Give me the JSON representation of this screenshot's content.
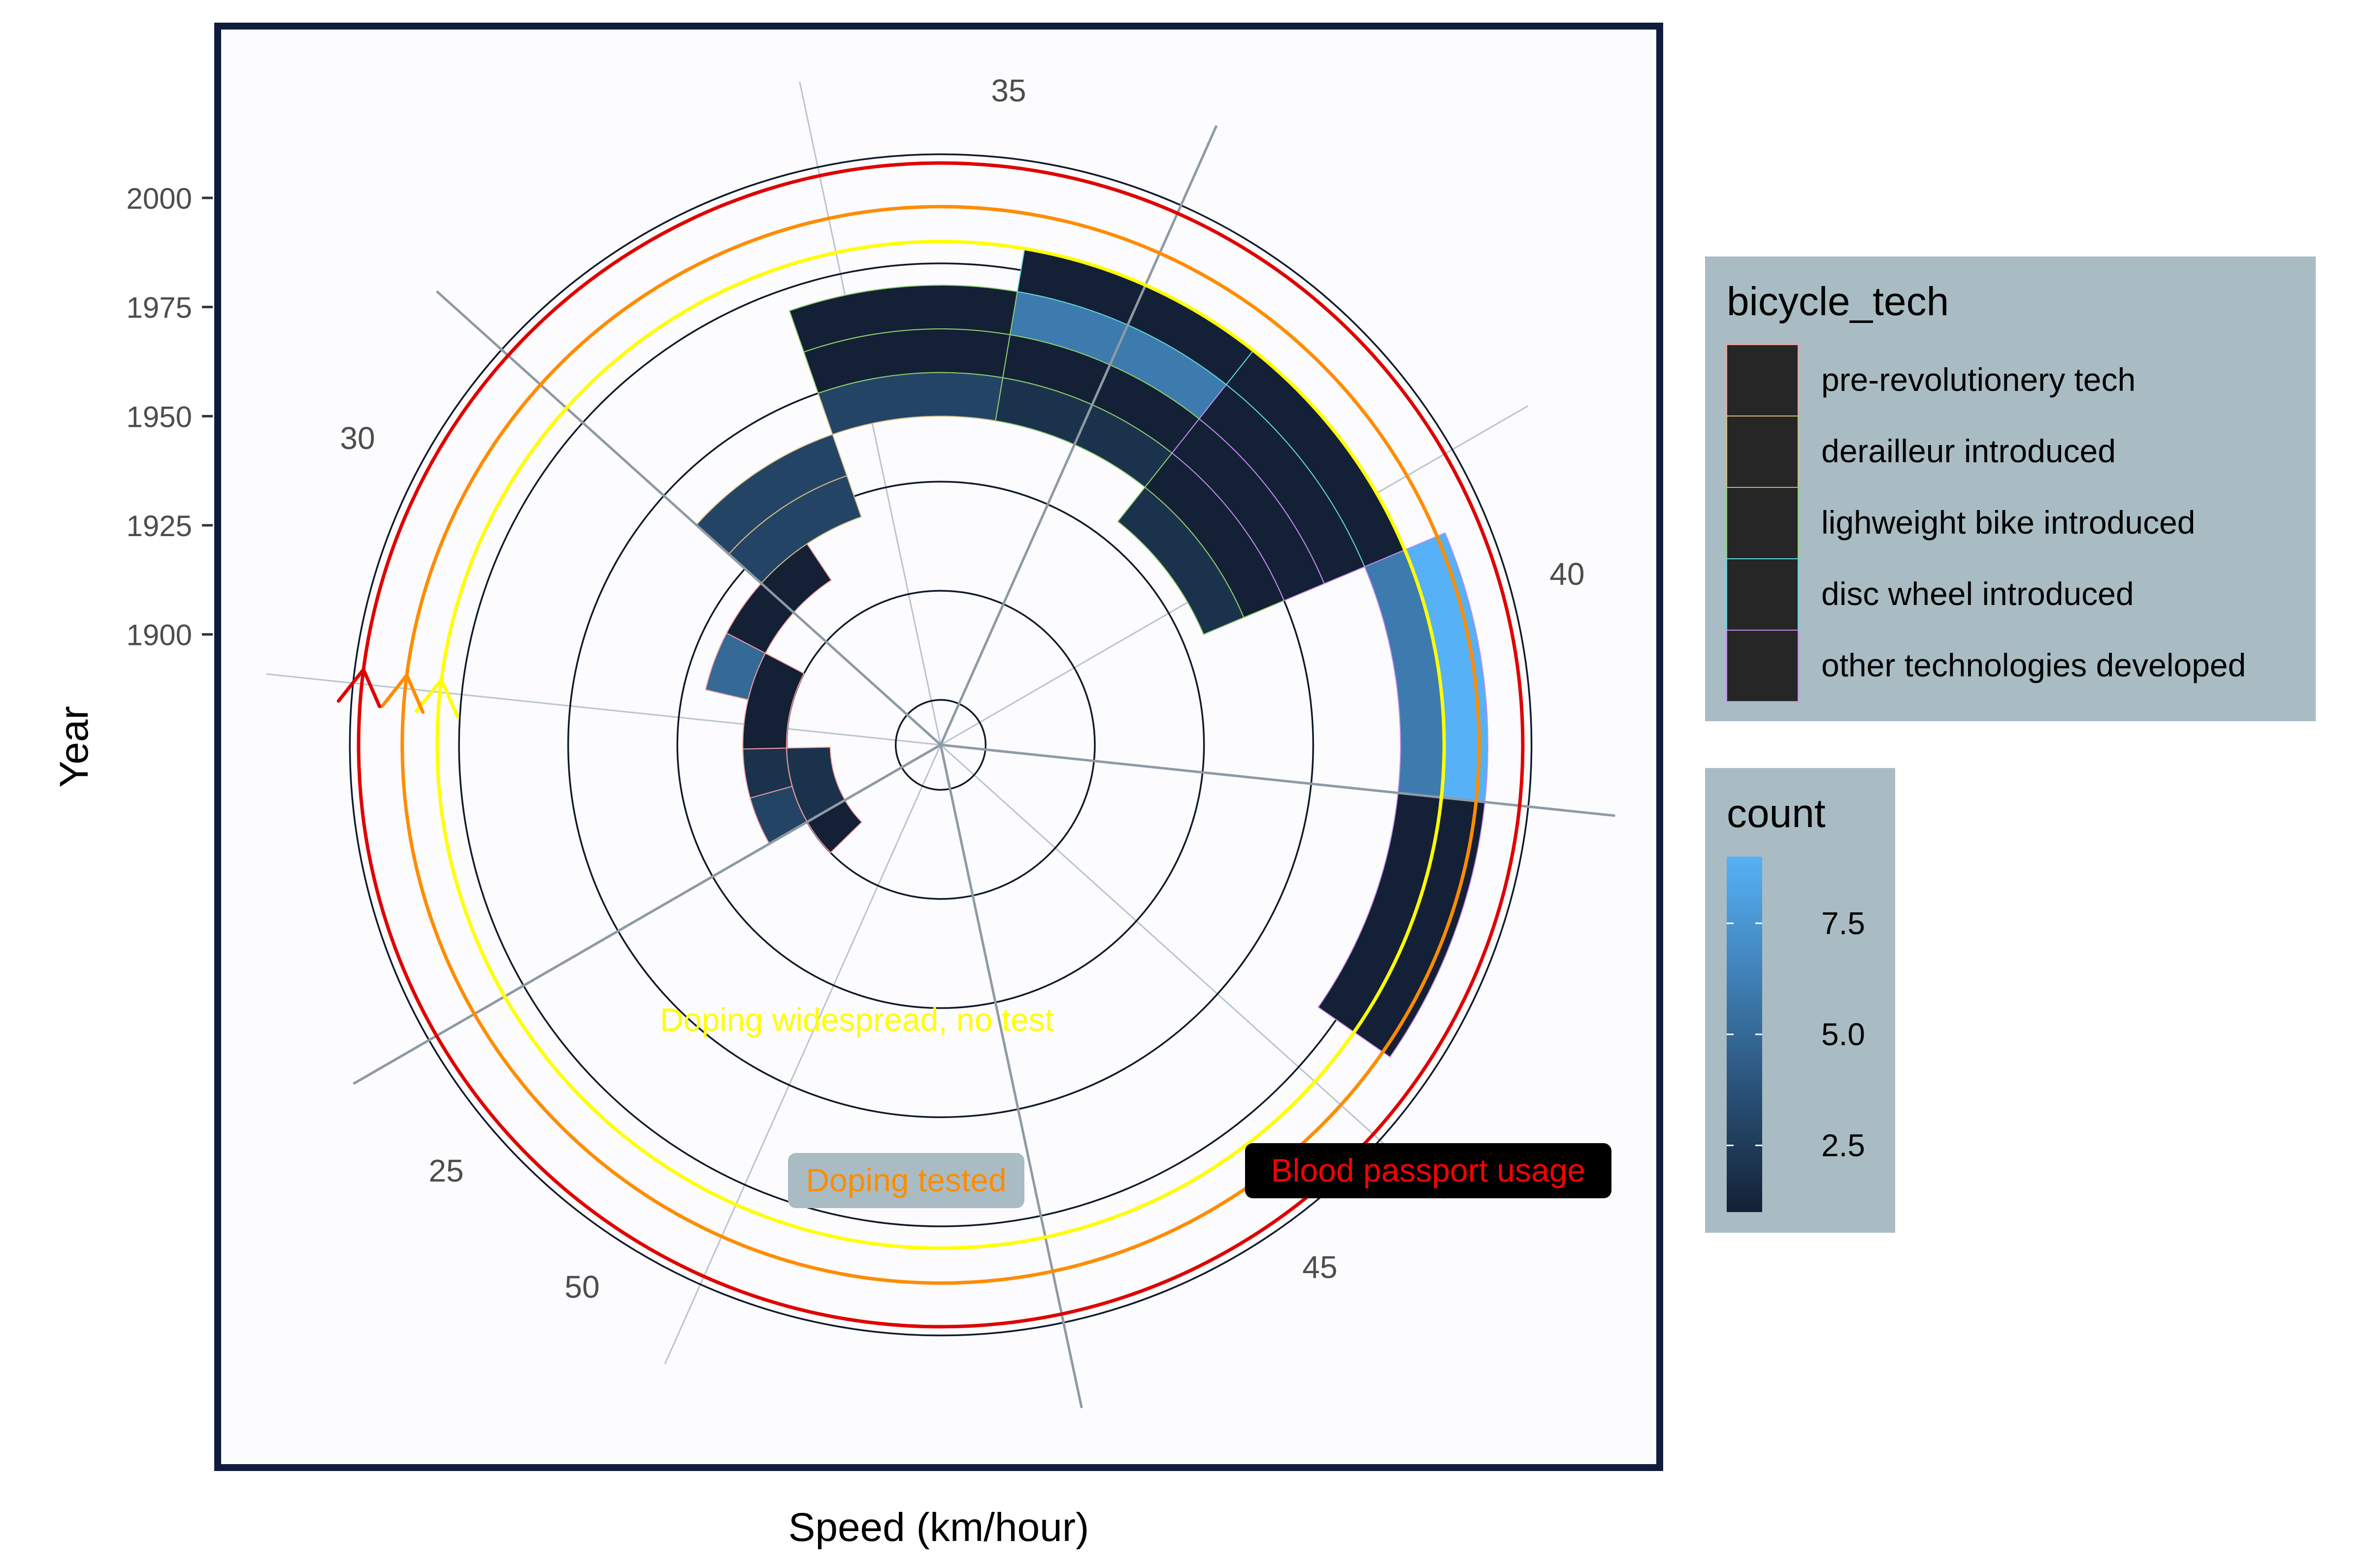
{
  "chart_data": {
    "type": "polar-heatmap",
    "title": "",
    "xlabel": "Speed (km/hour)",
    "ylabel": "Year",
    "theta_range": [
      25,
      50
    ],
    "r_range": [
      1880,
      2030
    ],
    "theta_ticks": [
      25,
      30,
      35,
      40,
      45,
      50
    ],
    "r_ticks": [
      1900,
      1925,
      1950,
      1975,
      2000
    ],
    "grid_circles": [
      1885,
      1910,
      1935,
      1960,
      1985,
      2010
    ],
    "legend_tech": {
      "title": "bicycle_tech",
      "items": [
        {
          "label": "pre-revolutionery tech",
          "color": "#f4a0a0"
        },
        {
          "label": "derailleur introduced",
          "color": "#d4c080"
        },
        {
          "label": "lighweight bike introduced",
          "color": "#8fd06f"
        },
        {
          "label": "disc wheel introduced",
          "color": "#5ed8e0"
        },
        {
          "label": "other technologies developed",
          "color": "#c58af0"
        }
      ]
    },
    "legend_count": {
      "title": "count",
      "ticks": [
        "2.5",
        "5.0",
        "7.5"
      ],
      "tick_values": [
        2.5,
        5.0,
        7.5
      ],
      "min": 1,
      "max": 9,
      "low_color": "#132035",
      "high_color": "#56b1f7"
    },
    "tiles": [
      {
        "speed": 25.0,
        "year": 1905,
        "count": 1,
        "tech": "pre-revolutionery tech"
      },
      {
        "speed": 26.0,
        "year": 1905,
        "count": 2,
        "tech": "pre-revolutionery tech"
      },
      {
        "speed": 26.0,
        "year": 1915,
        "count": 3,
        "tech": "pre-revolutionery tech"
      },
      {
        "speed": 27.0,
        "year": 1915,
        "count": 2,
        "tech": "pre-revolutionery tech"
      },
      {
        "speed": 28.0,
        "year": 1915,
        "count": 1,
        "tech": "pre-revolutionery tech"
      },
      {
        "speed": 29.0,
        "year": 1925,
        "count": 5,
        "tech": "pre-revolutionery tech"
      },
      {
        "speed": 30.0,
        "year": 1925,
        "count": 1,
        "tech": "pre-revolutionery tech"
      },
      {
        "speed": 31.0,
        "year": 1935,
        "count": 3,
        "tech": "derailleur introduced"
      },
      {
        "speed": 31.0,
        "year": 1945,
        "count": 3,
        "tech": "derailleur introduced"
      },
      {
        "speed": 33.0,
        "year": 1955,
        "count": 3,
        "tech": "derailleur introduced"
      },
      {
        "speed": 33.0,
        "year": 1965,
        "count": 1,
        "tech": "lighweight bike introduced"
      },
      {
        "speed": 33.0,
        "year": 1975,
        "count": 1,
        "tech": "lighweight bike introduced"
      },
      {
        "speed": 35.0,
        "year": 1955,
        "count": 2,
        "tech": "lighweight bike introduced"
      },
      {
        "speed": 35.0,
        "year": 1965,
        "count": 1,
        "tech": "lighweight bike introduced"
      },
      {
        "speed": 35.0,
        "year": 1975,
        "count": 6,
        "tech": "lighweight bike introduced"
      },
      {
        "speed": 35.0,
        "year": 1985,
        "count": 1,
        "tech": "disc wheel introduced"
      },
      {
        "speed": 37.0,
        "year": 1945,
        "count": 2,
        "tech": "lighweight bike introduced"
      },
      {
        "speed": 37.0,
        "year": 1955,
        "count": 1,
        "tech": "lighweight bike introduced"
      },
      {
        "speed": 37.0,
        "year": 1965,
        "count": 1,
        "tech": "other technologies developed"
      },
      {
        "speed": 37.0,
        "year": 1975,
        "count": 1,
        "tech": "other technologies developed"
      },
      {
        "speed": 37.0,
        "year": 1985,
        "count": 1,
        "tech": "disc wheel introduced"
      },
      {
        "speed": 39.0,
        "year": 1985,
        "count": 6,
        "tech": "other technologies developed"
      },
      {
        "speed": 39.0,
        "year": 1995,
        "count": 9,
        "tech": "other technologies developed"
      },
      {
        "speed": 41.0,
        "year": 1985,
        "count": 1,
        "tech": "other technologies developed"
      },
      {
        "speed": 41.0,
        "year": 1995,
        "count": 1,
        "tech": "other technologies developed"
      }
    ],
    "annotations": [
      {
        "label": "Doping widespread, no test",
        "year": 1990,
        "from_speed": 37.0,
        "to_speed": 27.6,
        "color": "#ffff00",
        "box": false
      },
      {
        "label": "Doping tested",
        "year": 1998,
        "from_speed": 37.0,
        "to_speed": 27.6,
        "color": "#ff8c00",
        "box": true,
        "box_color": "#a9bcc4"
      },
      {
        "label": "Blood passport usage",
        "year": 2008,
        "from_speed": 37.0,
        "to_speed": 27.6,
        "color": "#e00000",
        "box": true,
        "box_color": "#000000",
        "text_color": "#ff0000"
      }
    ]
  }
}
